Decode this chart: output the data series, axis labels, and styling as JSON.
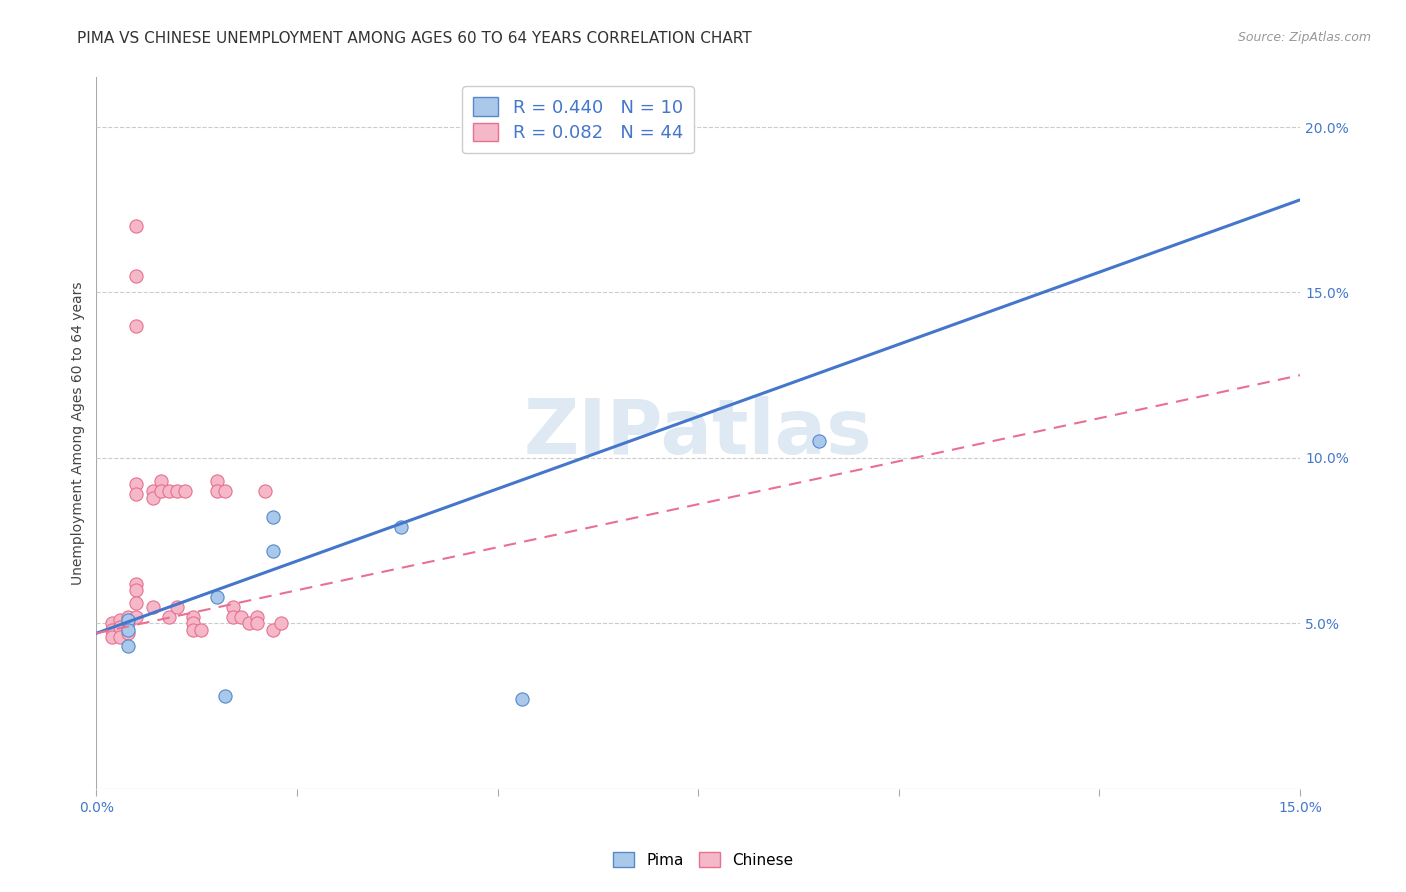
{
  "title": "PIMA VS CHINESE UNEMPLOYMENT AMONG AGES 60 TO 64 YEARS CORRELATION CHART",
  "source": "Source: ZipAtlas.com",
  "ylabel": "Unemployment Among Ages 60 to 64 years",
  "xlim": [
    0.0,
    0.15
  ],
  "ylim": [
    0.0,
    0.215
  ],
  "xtick_vals": [
    0.0,
    0.025,
    0.05,
    0.075,
    0.1,
    0.125,
    0.15
  ],
  "ytick_right_vals": [
    0.05,
    0.1,
    0.15,
    0.2
  ],
  "ytick_right_labels": [
    "5.0%",
    "10.0%",
    "15.0%",
    "20.0%"
  ],
  "background_color": "#ffffff",
  "grid_color": "#cccccc",
  "pima_x": [
    0.004,
    0.004,
    0.004,
    0.015,
    0.016,
    0.022,
    0.022,
    0.038,
    0.09,
    0.053
  ],
  "pima_y": [
    0.051,
    0.048,
    0.043,
    0.058,
    0.028,
    0.082,
    0.072,
    0.079,
    0.105,
    0.027
  ],
  "pima_color": "#aac8ea",
  "pima_edge_color": "#5588cc",
  "pima_label": "Pima",
  "pima_r": 0.44,
  "pima_n": 10,
  "chinese_x": [
    0.002,
    0.002,
    0.002,
    0.003,
    0.003,
    0.003,
    0.004,
    0.004,
    0.004,
    0.005,
    0.005,
    0.005,
    0.005,
    0.005,
    0.005,
    0.005,
    0.005,
    0.005,
    0.007,
    0.007,
    0.007,
    0.008,
    0.008,
    0.009,
    0.009,
    0.01,
    0.01,
    0.011,
    0.012,
    0.012,
    0.012,
    0.013,
    0.015,
    0.015,
    0.016,
    0.017,
    0.017,
    0.018,
    0.019,
    0.02,
    0.02,
    0.021,
    0.022,
    0.023
  ],
  "chinese_y": [
    0.05,
    0.048,
    0.046,
    0.051,
    0.049,
    0.046,
    0.052,
    0.05,
    0.047,
    0.17,
    0.155,
    0.14,
    0.092,
    0.089,
    0.062,
    0.06,
    0.056,
    0.052,
    0.09,
    0.088,
    0.055,
    0.093,
    0.09,
    0.09,
    0.052,
    0.09,
    0.055,
    0.09,
    0.052,
    0.05,
    0.048,
    0.048,
    0.093,
    0.09,
    0.09,
    0.055,
    0.052,
    0.052,
    0.05,
    0.052,
    0.05,
    0.09,
    0.048,
    0.05
  ],
  "chinese_color": "#f5b8c9",
  "chinese_edge_color": "#e87090",
  "chinese_label": "Chinese",
  "chinese_r": 0.082,
  "chinese_n": 44,
  "pima_line_x": [
    0.0,
    0.15
  ],
  "pima_line_y": [
    0.047,
    0.178
  ],
  "pima_line_color": "#4477cc",
  "chinese_line_x": [
    0.0,
    0.15
  ],
  "chinese_line_y": [
    0.047,
    0.125
  ],
  "chinese_line_color": "#e87090",
  "watermark_text": "ZIPatlas",
  "marker_size": 90,
  "title_fontsize": 11,
  "label_fontsize": 10,
  "tick_fontsize": 10,
  "legend_fontsize": 13
}
